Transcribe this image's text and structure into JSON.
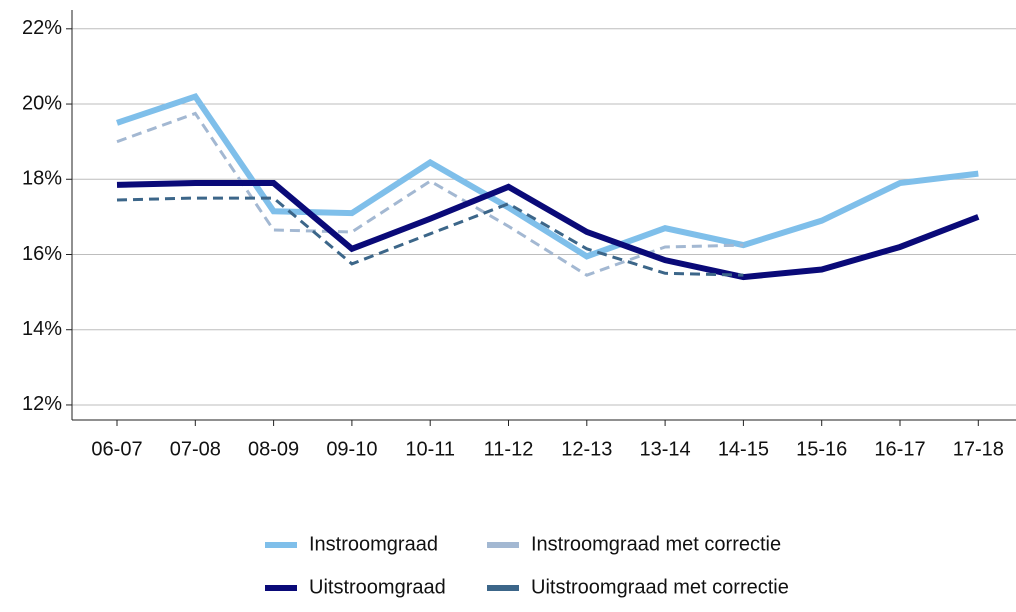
{
  "chart_data": {
    "type": "line",
    "categories": [
      "06-07",
      "07-08",
      "08-09",
      "09-10",
      "10-11",
      "11-12",
      "12-13",
      "13-14",
      "14-15",
      "15-16",
      "16-17",
      "17-18"
    ],
    "series": [
      {
        "name": "Instroomgraad",
        "color": "#7fbfea",
        "dashed": false,
        "width": 6,
        "values": [
          19.5,
          20.2,
          17.15,
          17.1,
          18.45,
          17.25,
          15.95,
          16.7,
          16.25,
          16.9,
          17.9,
          18.15
        ]
      },
      {
        "name": "Instroomgraad met correctie",
        "color": "#a3b8d2",
        "dashed": true,
        "width": 3,
        "values": [
          19.0,
          19.75,
          16.65,
          16.6,
          17.95,
          16.75,
          15.45,
          16.2,
          16.25,
          null,
          null,
          null
        ]
      },
      {
        "name": "Uitstroomgraad",
        "color": "#0a0a78",
        "dashed": false,
        "width": 6,
        "values": [
          17.85,
          17.9,
          17.9,
          16.15,
          16.95,
          17.8,
          16.6,
          15.85,
          15.4,
          15.6,
          16.2,
          17.0
        ]
      },
      {
        "name": "Uitstroomgraad met correctie",
        "color": "#3c6689",
        "dashed": true,
        "width": 3,
        "values": [
          17.45,
          17.5,
          17.5,
          15.75,
          16.55,
          17.35,
          16.15,
          15.5,
          15.45,
          null,
          null,
          null
        ]
      }
    ],
    "ylim": [
      11.6,
      22.5
    ],
    "yticks": [
      {
        "value": 12,
        "label": "12%"
      },
      {
        "value": 14,
        "label": "14%"
      },
      {
        "value": 16,
        "label": "16%"
      },
      {
        "value": 18,
        "label": "18%"
      },
      {
        "value": 20,
        "label": "20%"
      },
      {
        "value": 22,
        "label": "22%"
      }
    ],
    "grid": true
  }
}
